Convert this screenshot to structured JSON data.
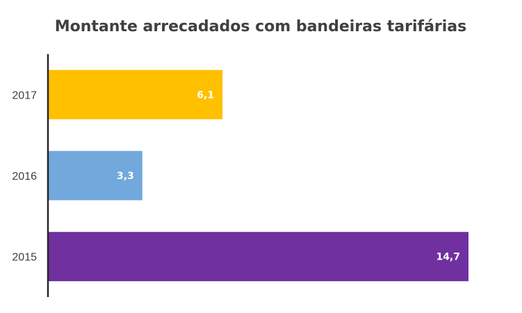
{
  "chart_data": {
    "type": "bar",
    "orientation": "horizontal",
    "title": "Montante arrecadados com bandeiras tarifárias",
    "xlabel": "",
    "ylabel": "",
    "categories": [
      "2017",
      "2016",
      "2015"
    ],
    "values": [
      6.1,
      3.3,
      14.7
    ],
    "data_labels": [
      "6,1",
      "3,3",
      "14,7"
    ],
    "colors": [
      "#FFC000",
      "#72A8DC",
      "#7030A0"
    ],
    "xlim": [
      0,
      15
    ],
    "grid": false,
    "legend": "none"
  }
}
